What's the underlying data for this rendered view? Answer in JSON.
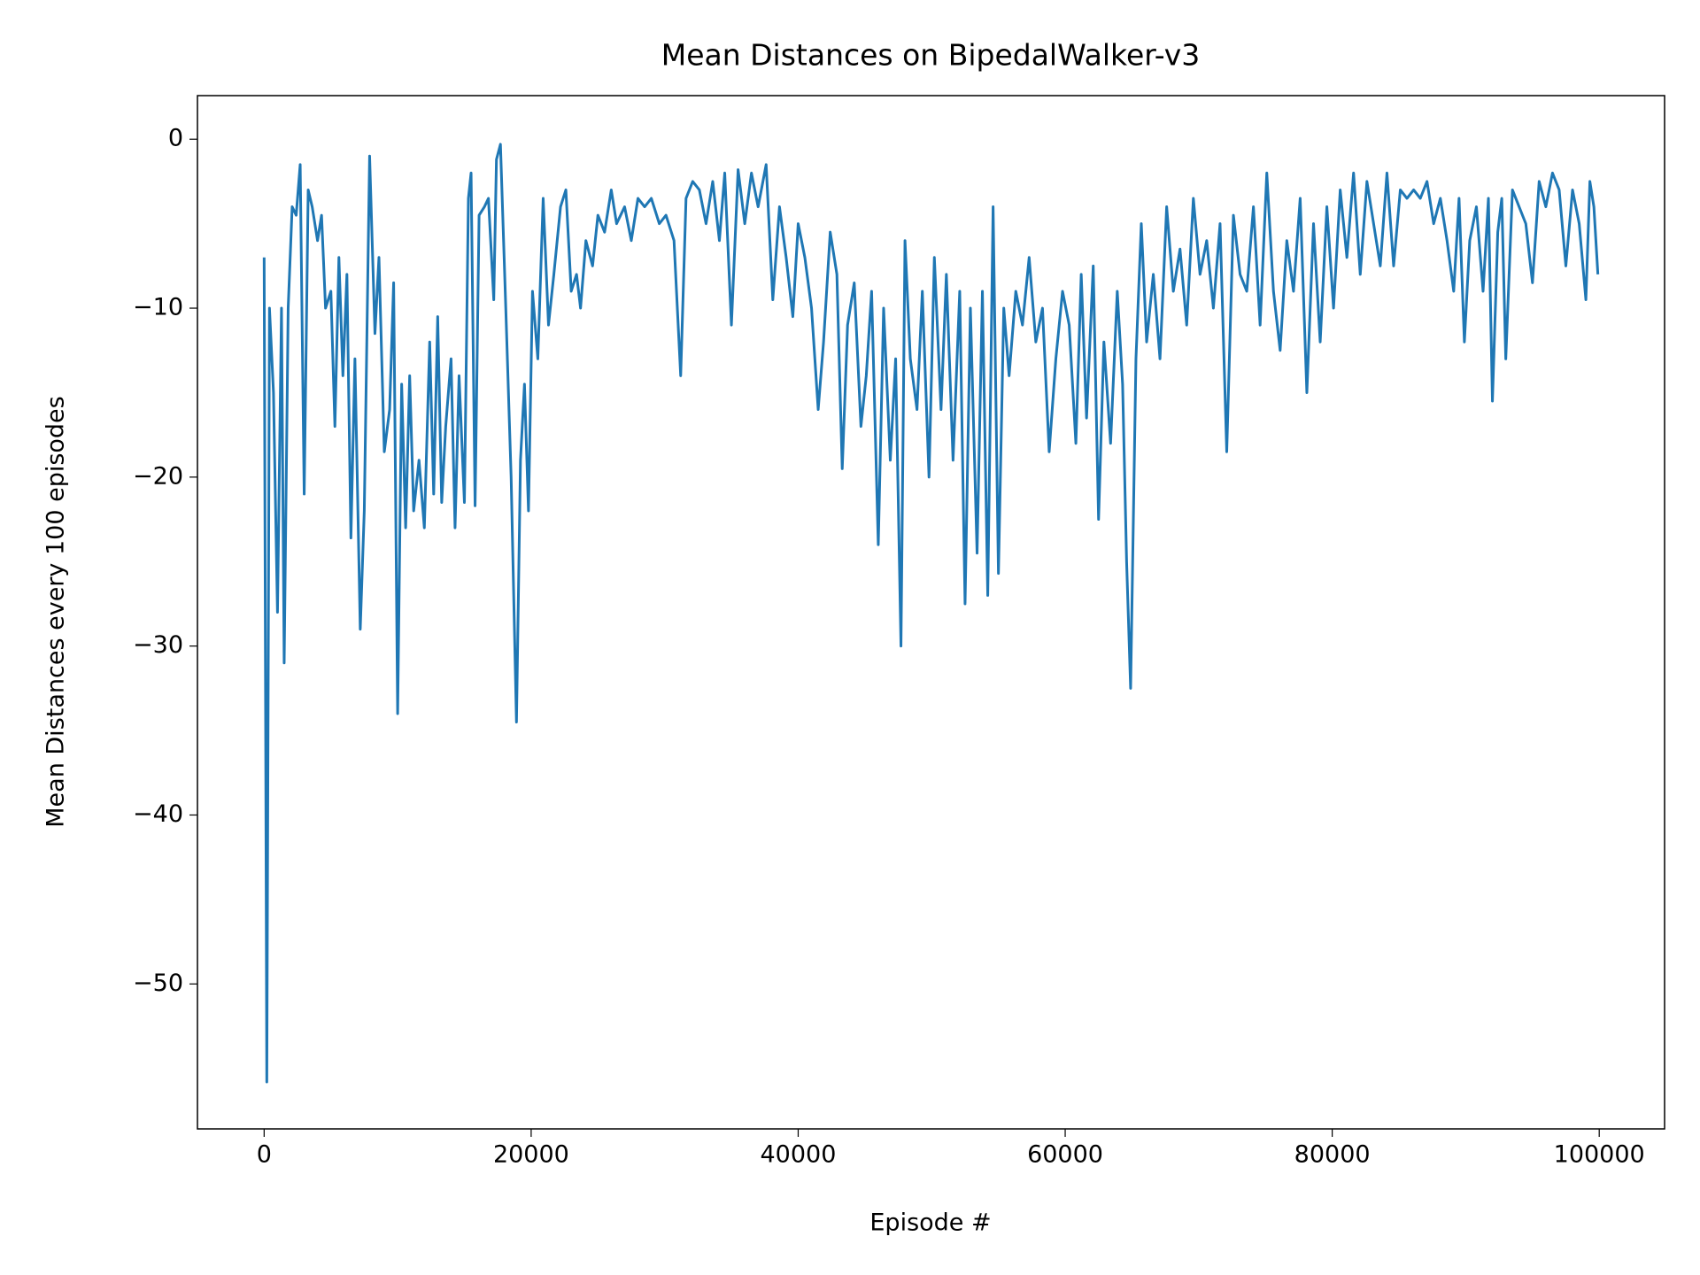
{
  "chart_data": {
    "type": "line",
    "title": "Mean Distances on BipedalWalker-v3",
    "xlabel": "Episode #",
    "ylabel": "Mean Distances every 100 episodes",
    "color": "#1f77b4",
    "xlim": [
      -4995,
      104895
    ],
    "ylim": [
      -58.58,
      2.58
    ],
    "xticks": [
      0,
      20000,
      40000,
      60000,
      80000,
      100000
    ],
    "yticks": [
      {
        "value": -50,
        "label": "−50"
      },
      {
        "value": -40,
        "label": "−40"
      },
      {
        "value": -30,
        "label": "−30"
      },
      {
        "value": -20,
        "label": "−20"
      },
      {
        "value": -10,
        "label": "−10"
      },
      0
    ],
    "x": [
      0,
      200,
      400,
      700,
      1000,
      1300,
      1500,
      1800,
      2100,
      2400,
      2700,
      3000,
      3300,
      3600,
      4000,
      4300,
      4600,
      5000,
      5300,
      5600,
      5900,
      6200,
      6500,
      6800,
      7200,
      7500,
      7900,
      8300,
      8600,
      9000,
      9400,
      9700,
      10000,
      10300,
      10600,
      10900,
      11200,
      11600,
      12000,
      12400,
      12700,
      13000,
      13300,
      13600,
      14000,
      14300,
      14600,
      15000,
      15300,
      15500,
      15800,
      16100,
      16500,
      16800,
      17200,
      17400,
      17700,
      18100,
      18500,
      18900,
      19200,
      19500,
      19800,
      20100,
      20500,
      20900,
      21300,
      21700,
      22200,
      22600,
      23000,
      23400,
      23700,
      24100,
      24600,
      25000,
      25500,
      26000,
      26400,
      27000,
      27500,
      28000,
      28500,
      29000,
      29600,
      30100,
      30700,
      31200,
      31600,
      32100,
      32600,
      33100,
      33600,
      34100,
      34500,
      35000,
      35500,
      36000,
      36500,
      37000,
      37600,
      38100,
      38600,
      39100,
      39600,
      40000,
      40500,
      41000,
      41500,
      41900,
      42400,
      42900,
      43300,
      43700,
      44200,
      44700,
      45100,
      45500,
      46000,
      46400,
      46900,
      47300,
      47700,
      48000,
      48400,
      48900,
      49300,
      49800,
      50200,
      50700,
      51100,
      51600,
      52100,
      52500,
      52900,
      53400,
      53800,
      54200,
      54600,
      55000,
      55400,
      55800,
      56300,
      56800,
      57300,
      57800,
      58300,
      58800,
      59300,
      59800,
      60300,
      60800,
      61200,
      61600,
      62100,
      62500,
      62900,
      63400,
      63900,
      64300,
      64600,
      64900,
      65300,
      65700,
      66100,
      66600,
      67100,
      67600,
      68100,
      68600,
      69100,
      69600,
      70100,
      70600,
      71100,
      71600,
      72100,
      72600,
      73100,
      73600,
      74100,
      74600,
      75100,
      75600,
      76100,
      76600,
      77100,
      77600,
      78100,
      78600,
      79100,
      79600,
      80100,
      80600,
      81100,
      81600,
      82100,
      82600,
      83100,
      83600,
      84100,
      84600,
      85100,
      85600,
      86100,
      86600,
      87100,
      87600,
      88100,
      88600,
      89100,
      89500,
      89900,
      90300,
      90800,
      91300,
      91700,
      92000,
      92400,
      92700,
      93000,
      93500,
      94000,
      94500,
      95000,
      95500,
      96000,
      96500,
      97000,
      97500,
      98000,
      98500,
      99000,
      99300,
      99600,
      99900
    ],
    "values": [
      -7,
      -55.8,
      -10,
      -15,
      -28,
      -10,
      -31,
      -10,
      -4,
      -4.5,
      -1.5,
      -21,
      -3,
      -4,
      -6,
      -4.5,
      -10,
      -9,
      -17,
      -7,
      -14,
      -8,
      -23.6,
      -13,
      -29,
      -22,
      -1,
      -11.5,
      -7,
      -18.5,
      -16,
      -8.5,
      -34,
      -14.5,
      -23,
      -14,
      -22,
      -19,
      -23,
      -12,
      -21,
      -10.5,
      -21.5,
      -17,
      -13,
      -23,
      -14,
      -21.5,
      -3.5,
      -2,
      -21.7,
      -4.5,
      -4,
      -3.5,
      -9.5,
      -1.2,
      -0.3,
      -10,
      -20,
      -34.5,
      -19,
      -14.5,
      -22,
      -9,
      -13,
      -3.5,
      -11,
      -8,
      -4,
      -3,
      -9,
      -8,
      -10,
      -6,
      -7.5,
      -4.5,
      -5.5,
      -3,
      -5,
      -4,
      -6,
      -3.5,
      -4,
      -3.5,
      -5,
      -4.5,
      -6,
      -14,
      -3.5,
      -2.5,
      -3,
      -5,
      -2.5,
      -6,
      -2,
      -11,
      -1.8,
      -5,
      -2,
      -4,
      -1.5,
      -9.5,
      -4,
      -7,
      -10.5,
      -5,
      -7,
      -10,
      -16,
      -12,
      -5.5,
      -8,
      -19.5,
      -11,
      -8.5,
      -17,
      -14,
      -9,
      -24,
      -10,
      -19,
      -13,
      -30,
      -6,
      -13,
      -16,
      -9,
      -20,
      -7,
      -16,
      -8,
      -19,
      -9,
      -27.5,
      -10,
      -24.5,
      -9,
      -27,
      -4,
      -25.7,
      -10,
      -14,
      -9,
      -11,
      -7,
      -12,
      -10,
      -18.5,
      -13,
      -9,
      -11,
      -18,
      -8,
      -16.5,
      -7.5,
      -22.5,
      -12,
      -18,
      -9,
      -14.5,
      -25,
      -32.5,
      -13,
      -5,
      -12,
      -8,
      -13,
      -4,
      -9,
      -6.5,
      -11,
      -3.5,
      -8,
      -6,
      -10,
      -5,
      -18.5,
      -4.5,
      -8,
      -9,
      -4,
      -11,
      -2,
      -9,
      -12.5,
      -6,
      -9,
      -3.5,
      -15,
      -5,
      -12,
      -4,
      -10,
      -3,
      -7,
      -2,
      -8,
      -2.5,
      -5,
      -7.5,
      -2,
      -7.5,
      -3,
      -3.5,
      -3,
      -3.5,
      -2.5,
      -5,
      -3.5,
      -6,
      -9,
      -3.5,
      -12,
      -6,
      -4,
      -9,
      -3.5,
      -15.5,
      -5.5,
      -3.5,
      -13,
      -3,
      -4,
      -5,
      -8.5,
      -2.5,
      -4,
      -2,
      -3,
      -7.5,
      -3,
      -5,
      -9.5,
      -2.5,
      -4,
      -8
    ]
  }
}
